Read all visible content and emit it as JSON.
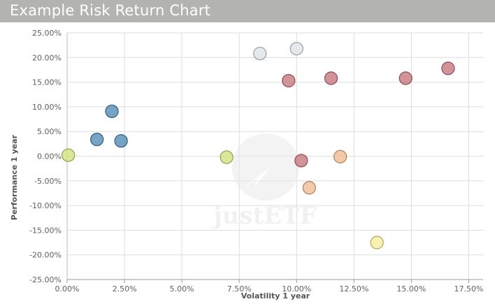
{
  "header": {
    "title": "Example Risk Return Chart"
  },
  "watermark": {
    "text": "justETF"
  },
  "chart_data": {
    "type": "scatter",
    "title": "Example Risk Return Chart",
    "xlabel": "Volatility 1 year",
    "ylabel": "Performance 1 year",
    "xlim": [
      0,
      18.125
    ],
    "ylim": [
      -25,
      25
    ],
    "x_ticks": [
      "0.00%",
      "2.50%",
      "5.00%",
      "7.50%",
      "10.00%",
      "12.50%",
      "15.00%",
      "17.50%"
    ],
    "y_ticks": [
      "25.00%",
      "20.00%",
      "15.00%",
      "10.00%",
      "5.00%",
      "0.00%",
      "-5.00%",
      "-10.00%",
      "-15.00%",
      "-20.00%",
      "-25.00%"
    ],
    "grid": true,
    "legend": "none",
    "series": [
      {
        "color": "#4f8ab5",
        "points": [
          {
            "x": 1.95,
            "y": 9.1
          },
          {
            "x": 1.3,
            "y": 3.4
          },
          {
            "x": 2.35,
            "y": 3.1
          }
        ]
      },
      {
        "color": "#d2e07a",
        "points": [
          {
            "x": 0.05,
            "y": 0.2
          },
          {
            "x": 6.95,
            "y": -0.2
          }
        ]
      },
      {
        "color": "#dde3e8",
        "points": [
          {
            "x": 8.4,
            "y": 20.8
          },
          {
            "x": 10.0,
            "y": 21.8
          }
        ]
      },
      {
        "color": "#c7757d",
        "points": [
          {
            "x": 9.65,
            "y": 15.3
          },
          {
            "x": 11.5,
            "y": 15.8
          },
          {
            "x": 14.75,
            "y": 15.8
          },
          {
            "x": 16.6,
            "y": 17.8
          },
          {
            "x": 10.2,
            "y": -0.9
          }
        ]
      },
      {
        "color": "#f0bc90",
        "points": [
          {
            "x": 11.9,
            "y": -0.1
          },
          {
            "x": 10.55,
            "y": -6.4
          }
        ]
      },
      {
        "color": "#f6ee9a",
        "points": [
          {
            "x": 13.5,
            "y": -17.5
          }
        ]
      }
    ]
  }
}
